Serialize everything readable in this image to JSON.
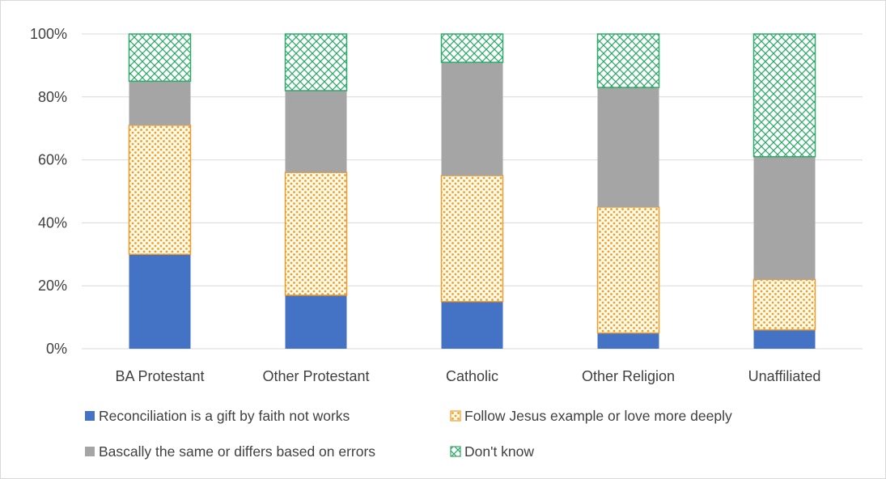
{
  "chart_data": {
    "type": "bar",
    "stacked": true,
    "categories": [
      "BA Protestant",
      "Other Protestant",
      "Catholic",
      "Other Religion",
      "Unaffiliated"
    ],
    "series": [
      {
        "name": "Reconciliation is a gift by faith not works",
        "values": [
          30,
          17,
          15,
          5,
          6
        ],
        "color": "#4472c4",
        "pattern": "solid"
      },
      {
        "name": "Follow Jesus example or love more deeply",
        "values": [
          41,
          39,
          40,
          40,
          16
        ],
        "color": "#ed9d2b",
        "pattern": "dots"
      },
      {
        "name": "Bascally the same or differs based on errors",
        "values": [
          14,
          26,
          36,
          38,
          39
        ],
        "color": "#a5a5a5",
        "pattern": "solid"
      },
      {
        "name": "Don't know",
        "values": [
          15,
          18,
          9,
          17,
          39
        ],
        "color": "#2eaa6a",
        "pattern": "crosshatch"
      }
    ],
    "yticks": [
      "0%",
      "20%",
      "40%",
      "60%",
      "80%",
      "100%"
    ],
    "ylim": [
      0,
      100
    ],
    "grid": true,
    "legend": "bottom"
  }
}
